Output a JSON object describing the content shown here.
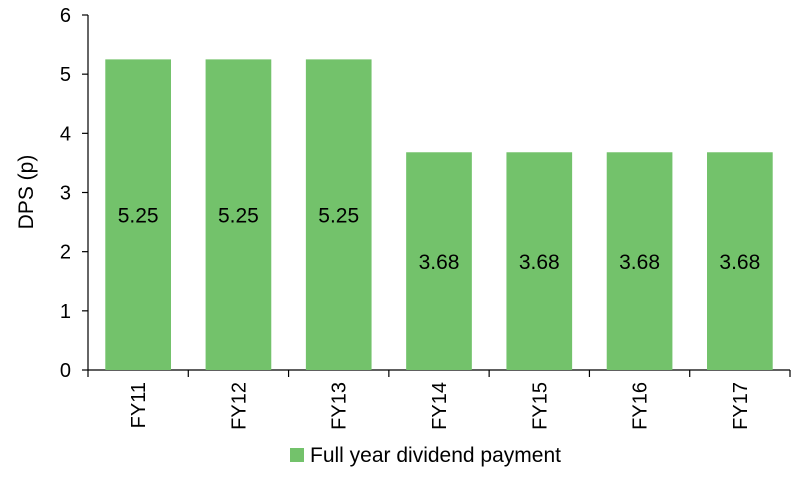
{
  "chart_data": {
    "type": "bar",
    "categories": [
      "FY11",
      "FY12",
      "FY13",
      "FY14",
      "FY15",
      "FY16",
      "FY17"
    ],
    "series": [
      {
        "name": "Full year dividend payment",
        "values": [
          5.25,
          5.25,
          5.25,
          3.68,
          3.68,
          3.68,
          3.68
        ],
        "color": "#73c26b"
      }
    ],
    "data_labels": [
      "5.25",
      "5.25",
      "5.25",
      "3.68",
      "3.68",
      "3.68",
      "3.68"
    ],
    "ylabel": "DPS (p)",
    "xlabel": "",
    "ylim": [
      0,
      6
    ],
    "yticks": [
      "0",
      "1",
      "2",
      "3",
      "4",
      "5",
      "6"
    ],
    "grid": false,
    "legend_position": "bottom"
  }
}
